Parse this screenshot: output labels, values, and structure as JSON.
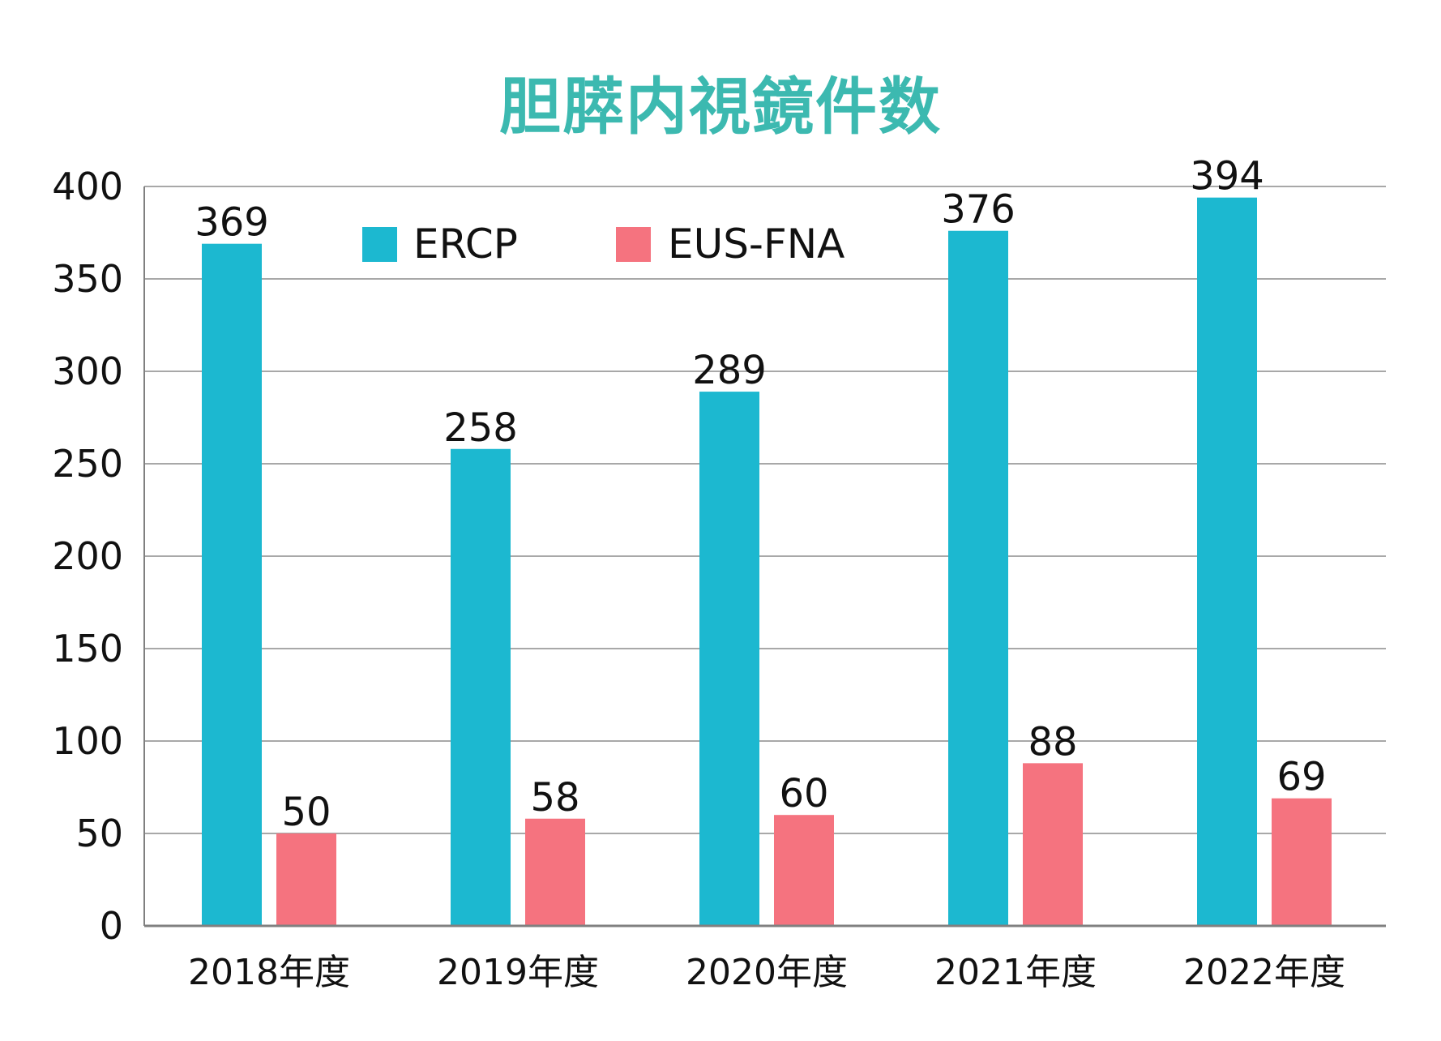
{
  "chart_data": {
    "type": "bar",
    "title": "胆膵内視鏡件数",
    "categories": [
      "2018年度",
      "2019年度",
      "2020年度",
      "2021年度",
      "2022年度"
    ],
    "series": [
      {
        "name": "ERCP",
        "color": "#1cb8d0",
        "values": [
          369,
          258,
          289,
          376,
          394
        ]
      },
      {
        "name": "EUS-FNA",
        "color": "#f5737f",
        "values": [
          50,
          58,
          60,
          88,
          69
        ]
      }
    ],
    "ylim": [
      0,
      400
    ],
    "yticks": [
      "0",
      "50",
      "100",
      "150",
      "200",
      "250",
      "300",
      "350",
      "400"
    ],
    "grid": true,
    "legend_position": "top-center"
  },
  "colors": {
    "title": "#3cb9b0",
    "grid": "#a8a8a8",
    "axis": "#808080",
    "text": "#111111"
  }
}
